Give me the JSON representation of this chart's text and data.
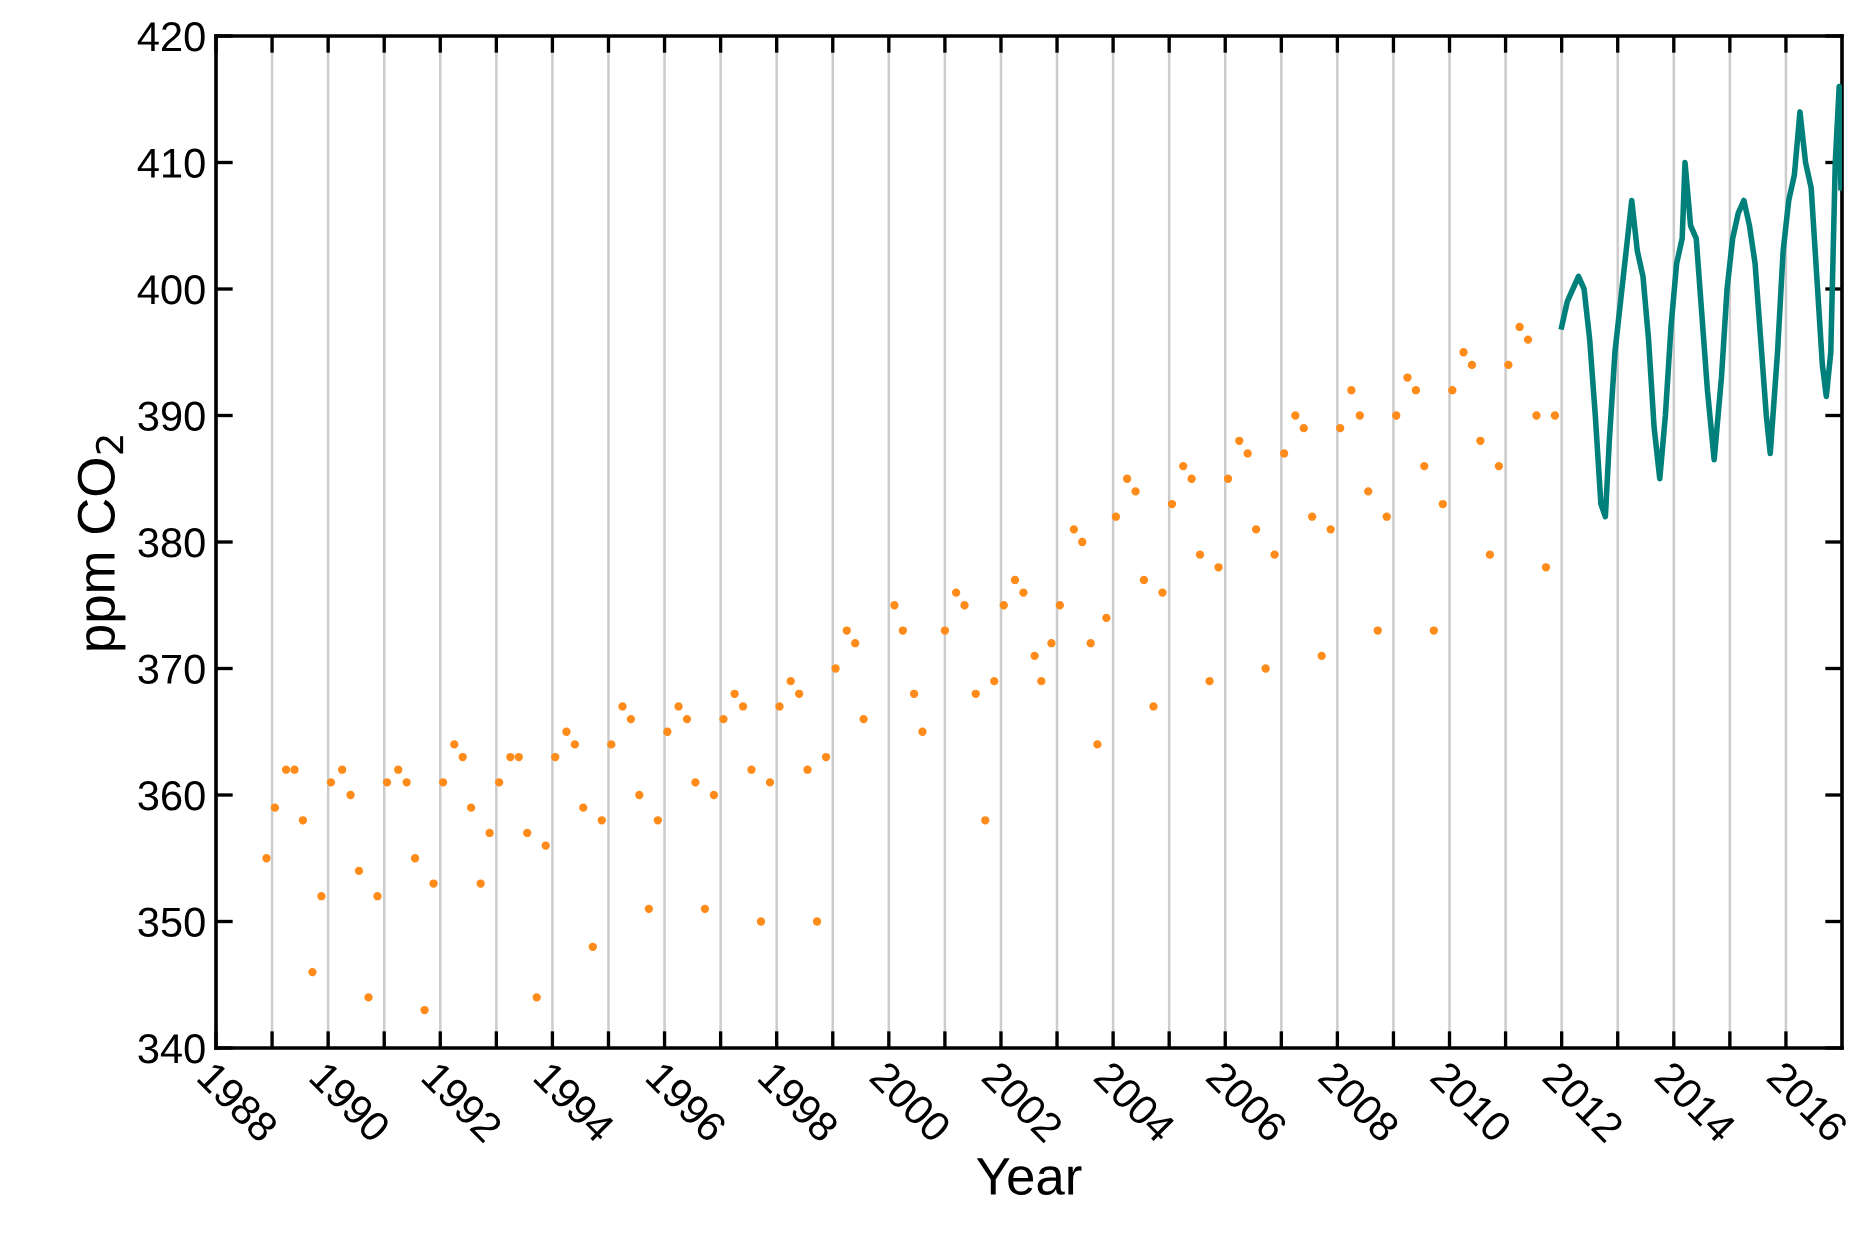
{
  "chart_data": {
    "type": "scatter",
    "xlabel": "Year",
    "ylabel": "ppm CO$_{2}$",
    "xlim": [
      1988,
      2017
    ],
    "ylim": [
      340,
      420
    ],
    "xticks": [
      1988,
      {
        "value": 1989,
        "label": null
      },
      1990,
      {
        "value": 1991,
        "label": null
      },
      1992,
      {
        "value": 1993,
        "label": null
      },
      1994,
      {
        "value": 1995,
        "label": null
      },
      1996,
      {
        "value": 1997,
        "label": null
      },
      1998,
      {
        "value": 1999,
        "label": null
      },
      2000,
      {
        "value": 2001,
        "label": null
      },
      2002,
      {
        "value": 2003,
        "label": null
      },
      2004,
      {
        "value": 2005,
        "label": null
      },
      2006,
      {
        "value": 2007,
        "label": null
      },
      2008,
      {
        "value": 2009,
        "label": null
      },
      2010,
      {
        "value": 2011,
        "label": null
      },
      2012,
      {
        "value": 2013,
        "label": null
      },
      2014,
      {
        "value": 2015,
        "label": null
      },
      2016
    ],
    "yticks": [
      340,
      350,
      360,
      370,
      380,
      390,
      400,
      410,
      420
    ],
    "grid": "x",
    "series": [
      {
        "color": "#ff8c1a",
        "marker": "circle",
        "x": [
          1988.9,
          1989.05,
          1989.25,
          1989.4,
          1989.55,
          1989.72,
          1989.88,
          1990.05,
          1990.25,
          1990.4,
          1990.55,
          1990.72,
          1990.88,
          1991.05,
          1991.25,
          1991.4,
          1991.55,
          1991.72,
          1991.88,
          1992.05,
          1992.25,
          1992.4,
          1992.55,
          1992.72,
          1992.88,
          1993.05,
          1993.25,
          1993.4,
          1993.55,
          1993.72,
          1993.88,
          1994.05,
          1994.25,
          1994.4,
          1994.55,
          1994.72,
          1994.88,
          1995.05,
          1995.25,
          1995.4,
          1995.55,
          1995.72,
          1995.88,
          1996.05,
          1996.25,
          1996.4,
          1996.55,
          1996.72,
          1996.88,
          1997.05,
          1997.25,
          1997.4,
          1997.55,
          1997.72,
          1997.88,
          1998.05,
          1998.25,
          1998.4,
          1998.55,
          1998.72,
          1998.88,
          1999.05,
          1999.25,
          1999.4,
          1999.55,
          2000.1,
          2000.25,
          2000.45,
          2000.6,
          2001.0,
          2001.2,
          2001.35,
          2001.55,
          2001.72,
          2001.88,
          2002.05,
          2002.25,
          2002.4,
          2002.6,
          2002.72,
          2002.9,
          2003.05,
          2003.3,
          2003.45,
          2003.6,
          2003.72,
          2003.88,
          2004.05,
          2004.25,
          2004.4,
          2004.55,
          2004.72,
          2004.88,
          2005.05,
          2005.25,
          2005.4,
          2005.55,
          2005.72,
          2005.88,
          2006.05,
          2006.25,
          2006.4,
          2006.55,
          2006.72,
          2006.88,
          2007.05,
          2007.25,
          2007.4,
          2007.55,
          2007.72,
          2007.88,
          2008.05,
          2008.25,
          2008.4,
          2008.55,
          2008.72,
          2008.88,
          2009.05,
          2009.25,
          2009.4,
          2009.55,
          2009.72,
          2009.88,
          2010.05,
          2010.25,
          2010.4,
          2010.55,
          2010.72,
          2010.88,
          2011.05,
          2011.25,
          2011.4,
          2011.55,
          2011.72,
          2011.88
        ],
        "values": [
          355,
          359,
          362,
          362,
          358,
          346,
          352,
          361,
          362,
          360,
          354,
          344,
          352,
          361,
          362,
          361,
          355,
          343,
          353,
          361,
          364,
          363,
          359,
          353,
          357,
          361,
          363,
          363,
          357,
          344,
          356,
          363,
          365,
          364,
          359,
          348,
          358,
          364,
          367,
          366,
          360,
          351,
          358,
          365,
          367,
          366,
          361,
          351,
          360,
          366,
          368,
          367,
          362,
          350,
          361,
          367,
          369,
          368,
          362,
          350,
          363,
          370,
          373,
          372,
          366,
          375,
          373,
          368,
          365,
          373,
          376,
          375,
          368,
          358,
          369,
          375,
          377,
          376,
          371,
          369,
          372,
          375,
          381,
          380,
          372,
          364,
          374,
          382,
          385,
          384,
          377,
          367,
          376,
          383,
          386,
          385,
          379,
          369,
          378,
          385,
          388,
          387,
          381,
          370,
          379,
          387,
          390,
          389,
          382,
          371,
          381,
          389,
          392,
          390,
          384,
          373,
          382,
          390,
          393,
          392,
          386,
          373,
          383,
          392,
          395,
          394,
          388,
          379,
          386,
          394,
          397,
          396,
          390,
          378,
          390
        ]
      },
      {
        "type": "line",
        "color": "#00807a",
        "marker": "none",
        "line_style": "solid",
        "x": [
          2012.0,
          2012.1,
          2012.2,
          2012.3,
          2012.4,
          2012.5,
          2012.6,
          2012.7,
          2012.78,
          2012.85,
          2012.95,
          2013.05,
          2013.15,
          2013.25,
          2013.35,
          2013.45,
          2013.55,
          2013.65,
          2013.75,
          2013.85,
          2013.95,
          2014.05,
          2014.15,
          2014.2,
          2014.3,
          2014.4,
          2014.5,
          2014.6,
          2014.72,
          2014.85,
          2014.95,
          2015.05,
          2015.15,
          2015.25,
          2015.35,
          2015.45,
          2015.55,
          2015.65,
          2015.72,
          2015.85,
          2015.95,
          2016.05,
          2016.15,
          2016.25,
          2016.35,
          2016.45,
          2016.55,
          2016.65,
          2016.72,
          2016.8,
          2016.88,
          2016.95,
          2016.98
        ],
        "values": [
          397,
          399,
          400,
          401,
          400,
          396,
          390,
          383,
          382,
          388,
          395,
          399,
          403,
          407,
          403,
          401,
          396,
          389,
          385,
          390,
          397,
          402,
          404,
          410,
          405,
          404,
          398,
          392,
          386.5,
          393,
          400,
          404,
          406,
          407,
          405,
          402,
          396,
          390,
          387,
          395,
          403,
          407,
          409,
          414,
          410,
          408,
          401,
          394,
          391.5,
          395,
          410,
          416,
          408
        ]
      }
    ]
  }
}
